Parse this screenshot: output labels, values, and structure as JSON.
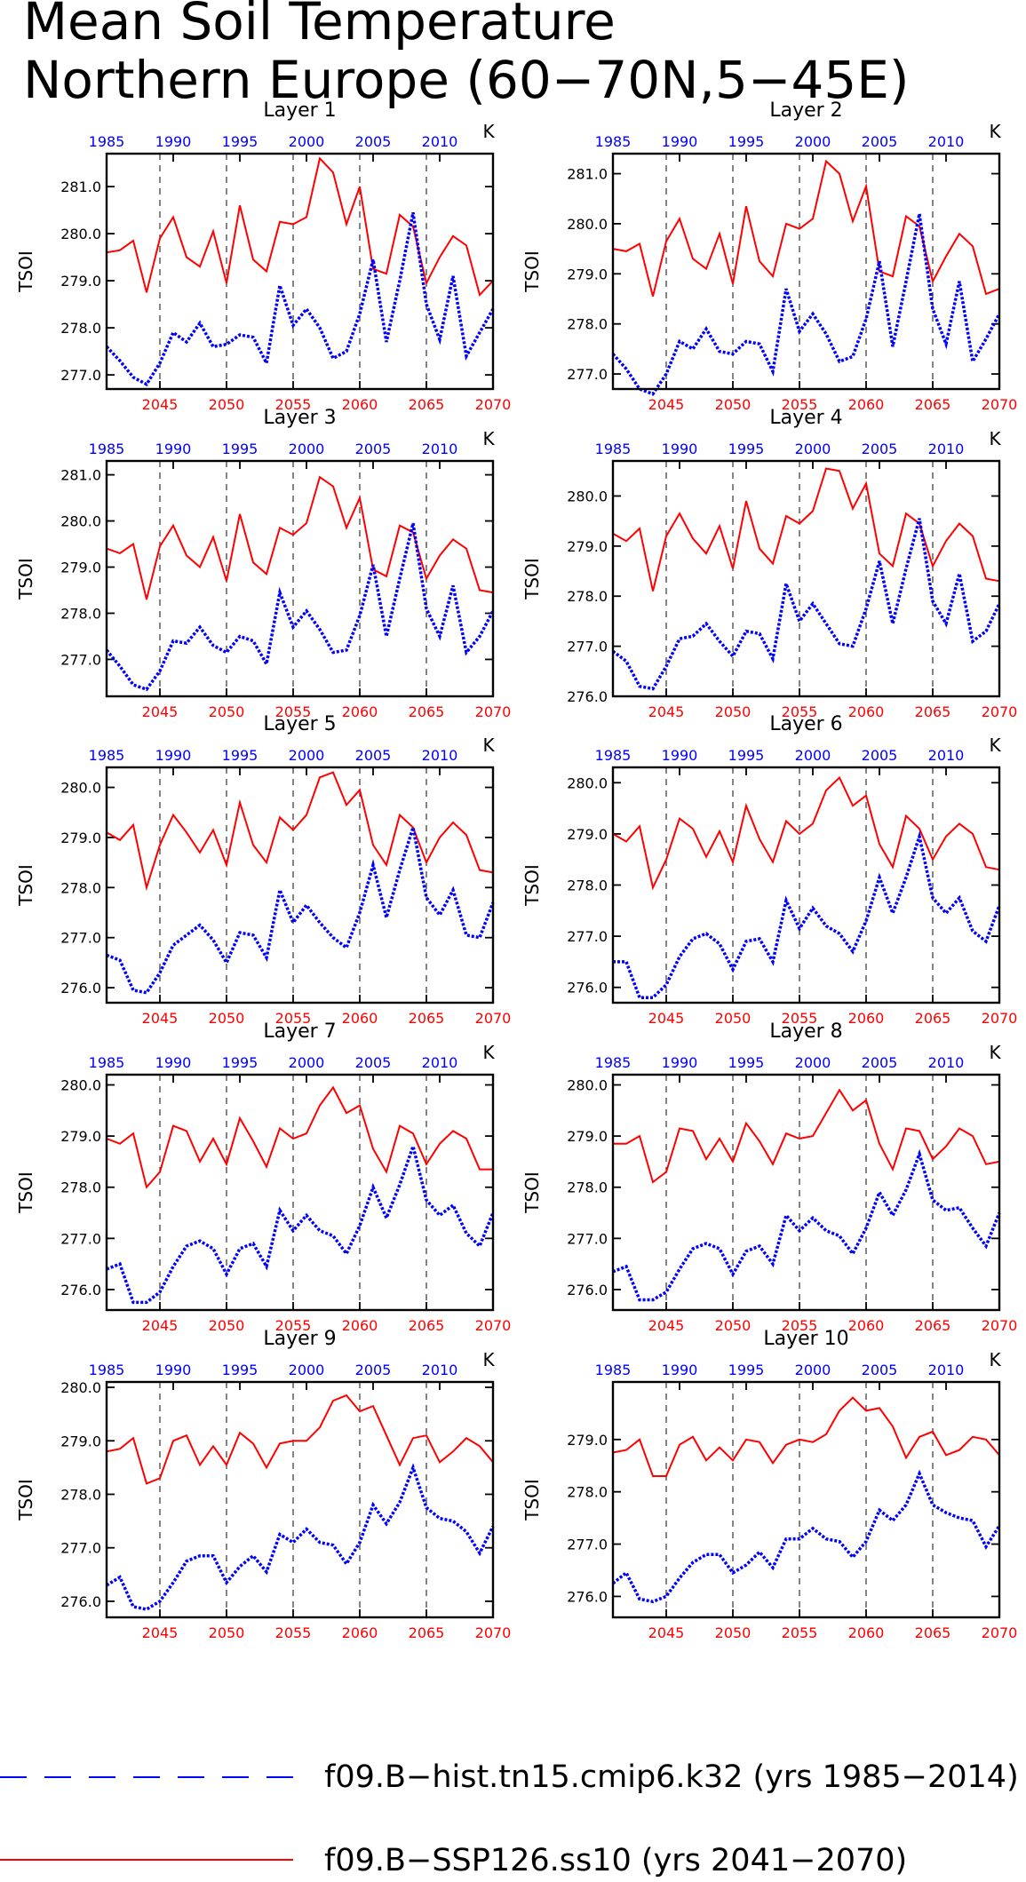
{
  "page": {
    "title_line1": "Mean Soil Temperature",
    "title_line2": "Northern Europe (60−70N,5−45E)"
  },
  "legend": {
    "entries": [
      {
        "label": "f09.B−hist.tn15.cmip6.k32 (yrs 1985−2014)",
        "color": "#0000ff",
        "style": "dashed"
      },
      {
        "label": "f09.B−SSP126.ss10 (yrs 2041−2070)",
        "color": "#ff0000",
        "style": "solid"
      }
    ]
  },
  "colors": {
    "red": "#ff0000",
    "blue": "#0000ff",
    "axis": "#000000"
  },
  "chart_data": [
    {
      "type": "line",
      "title": "Layer 1",
      "ylabel": "TSOI",
      "unit": "K",
      "ylim": [
        276.7,
        281.7
      ],
      "yticks": [
        277.0,
        278.0,
        279.0,
        280.0,
        281.0
      ],
      "x_bottom": [
        2041,
        2070
      ],
      "x_bottom_ticks": [
        2045,
        2050,
        2055,
        2060,
        2065,
        2070
      ],
      "x_top": [
        1985,
        2014
      ],
      "x_top_ticks": [
        1985,
        1990,
        1995,
        2000,
        2005,
        2010
      ],
      "red": [
        279.6,
        279.65,
        279.85,
        278.75,
        279.9,
        280.35,
        279.5,
        279.3,
        280.05,
        278.95,
        280.6,
        279.45,
        279.2,
        280.25,
        280.2,
        280.35,
        281.6,
        281.3,
        280.2,
        281.0,
        279.25,
        279.15,
        280.4,
        280.15,
        278.95,
        279.5,
        279.95,
        279.75,
        278.7,
        279.0
      ],
      "blue": [
        277.6,
        277.3,
        276.95,
        276.8,
        277.25,
        277.9,
        277.7,
        278.1,
        277.6,
        277.65,
        277.85,
        277.8,
        277.25,
        278.9,
        278.05,
        278.4,
        278.0,
        277.35,
        277.5,
        278.3,
        279.45,
        277.7,
        279.0,
        280.45,
        278.5,
        277.75,
        279.1,
        277.4,
        277.9,
        278.4
      ]
    },
    {
      "type": "line",
      "title": "Layer 2",
      "ylabel": "TSOI",
      "unit": "K",
      "ylim": [
        276.7,
        281.4
      ],
      "yticks": [
        277.0,
        278.0,
        279.0,
        280.0,
        281.0
      ],
      "x_bottom": [
        2041,
        2070
      ],
      "x_bottom_ticks": [
        2045,
        2050,
        2055,
        2060,
        2065,
        2070
      ],
      "x_top": [
        1985,
        2014
      ],
      "x_top_ticks": [
        1985,
        1990,
        1995,
        2000,
        2005,
        2010
      ],
      "red": [
        279.5,
        279.45,
        279.6,
        278.55,
        279.65,
        280.1,
        279.3,
        279.1,
        279.8,
        278.8,
        280.35,
        279.25,
        278.95,
        280.0,
        279.9,
        280.1,
        281.25,
        281.0,
        280.05,
        280.75,
        279.05,
        278.95,
        280.15,
        279.95,
        278.85,
        279.35,
        279.8,
        279.55,
        278.6,
        278.7
      ],
      "blue": [
        277.4,
        277.1,
        276.7,
        276.6,
        277.0,
        277.65,
        277.5,
        277.9,
        277.45,
        277.4,
        277.65,
        277.6,
        277.05,
        278.7,
        277.85,
        278.2,
        277.8,
        277.25,
        277.35,
        278.1,
        279.25,
        277.55,
        278.85,
        280.2,
        278.3,
        277.6,
        278.85,
        277.25,
        277.7,
        278.2
      ]
    },
    {
      "type": "line",
      "title": "Layer 3",
      "ylabel": "TSOI",
      "unit": "K",
      "ylim": [
        276.2,
        281.3
      ],
      "yticks": [
        277.0,
        278.0,
        279.0,
        280.0,
        281.0
      ],
      "x_bottom": [
        2041,
        2070
      ],
      "x_bottom_ticks": [
        2045,
        2050,
        2055,
        2060,
        2065,
        2070
      ],
      "x_top": [
        1985,
        2014
      ],
      "x_top_ticks": [
        1985,
        1990,
        1995,
        2000,
        2005,
        2010
      ],
      "red": [
        279.4,
        279.3,
        279.5,
        278.3,
        279.45,
        279.9,
        279.25,
        279.0,
        279.65,
        278.7,
        280.15,
        279.1,
        278.85,
        279.85,
        279.7,
        279.95,
        280.95,
        280.75,
        279.85,
        280.5,
        278.95,
        278.8,
        279.9,
        279.75,
        278.75,
        279.25,
        279.6,
        279.4,
        278.5,
        278.45
      ],
      "blue": [
        277.2,
        276.85,
        276.45,
        276.35,
        276.75,
        277.4,
        277.35,
        277.7,
        277.3,
        277.15,
        277.5,
        277.4,
        276.9,
        278.45,
        277.7,
        278.05,
        277.65,
        277.15,
        277.2,
        277.95,
        279.05,
        277.5,
        278.75,
        279.95,
        278.1,
        277.5,
        278.6,
        277.15,
        277.5,
        278.05
      ]
    },
    {
      "type": "line",
      "title": "Layer 4",
      "ylabel": "TSOI",
      "unit": "K",
      "ylim": [
        276.0,
        280.7
      ],
      "yticks": [
        276.0,
        277.0,
        278.0,
        279.0,
        280.0
      ],
      "x_bottom": [
        2041,
        2070
      ],
      "x_bottom_ticks": [
        2045,
        2050,
        2055,
        2060,
        2065,
        2070
      ],
      "x_top": [
        1985,
        2014
      ],
      "x_top_ticks": [
        1985,
        1990,
        1995,
        2000,
        2005,
        2010
      ],
      "red": [
        279.25,
        279.1,
        279.35,
        278.1,
        279.2,
        279.65,
        279.15,
        278.85,
        279.4,
        278.55,
        279.9,
        278.95,
        278.65,
        279.6,
        279.45,
        279.7,
        280.55,
        280.5,
        279.75,
        280.25,
        278.85,
        278.6,
        279.65,
        279.45,
        278.6,
        279.1,
        279.45,
        279.2,
        278.35,
        278.3
      ],
      "blue": [
        276.9,
        276.7,
        276.2,
        276.15,
        276.6,
        277.15,
        277.2,
        277.45,
        277.1,
        276.8,
        277.3,
        277.25,
        276.75,
        278.25,
        277.5,
        277.85,
        277.45,
        277.05,
        277.0,
        277.75,
        278.7,
        277.45,
        278.55,
        279.55,
        277.9,
        277.45,
        278.45,
        277.1,
        277.3,
        277.85
      ]
    },
    {
      "type": "line",
      "title": "Layer 5",
      "ylabel": "TSOI",
      "unit": "K",
      "ylim": [
        275.7,
        280.4
      ],
      "yticks": [
        276.0,
        277.0,
        278.0,
        279.0,
        280.0
      ],
      "x_bottom": [
        2041,
        2070
      ],
      "x_bottom_ticks": [
        2045,
        2050,
        2055,
        2060,
        2065,
        2070
      ],
      "x_top": [
        1985,
        2014
      ],
      "x_top_ticks": [
        1985,
        1990,
        1995,
        2000,
        2005,
        2010
      ],
      "red": [
        279.1,
        278.95,
        279.25,
        278.0,
        278.85,
        279.45,
        279.1,
        278.7,
        279.15,
        278.45,
        279.7,
        278.85,
        278.5,
        279.4,
        279.15,
        279.45,
        280.2,
        280.3,
        279.65,
        279.95,
        278.85,
        278.45,
        279.45,
        279.2,
        278.5,
        279.0,
        279.3,
        279.05,
        278.35,
        278.3
      ],
      "blue": [
        276.65,
        276.55,
        275.95,
        275.9,
        276.3,
        276.85,
        277.05,
        277.25,
        276.95,
        276.5,
        277.1,
        277.05,
        276.6,
        277.95,
        277.3,
        277.65,
        277.3,
        277.0,
        276.8,
        277.5,
        278.45,
        277.4,
        278.35,
        279.2,
        277.8,
        277.45,
        277.95,
        277.05,
        277.0,
        277.7
      ]
    },
    {
      "type": "line",
      "title": "Layer 6",
      "ylabel": "TSOI",
      "unit": "K",
      "ylim": [
        275.7,
        280.3
      ],
      "yticks": [
        276.0,
        277.0,
        278.0,
        279.0,
        280.0
      ],
      "x_bottom": [
        2041,
        2070
      ],
      "x_bottom_ticks": [
        2045,
        2050,
        2055,
        2060,
        2065,
        2070
      ],
      "x_top": [
        1985,
        2014
      ],
      "x_top_ticks": [
        1985,
        1990,
        1995,
        2000,
        2005,
        2010
      ],
      "red": [
        279.0,
        278.85,
        279.15,
        277.95,
        278.5,
        279.3,
        279.1,
        278.55,
        279.05,
        278.45,
        279.55,
        278.9,
        278.45,
        279.25,
        279.0,
        279.2,
        279.85,
        280.1,
        279.55,
        279.75,
        278.8,
        278.35,
        279.35,
        279.1,
        278.5,
        278.95,
        279.2,
        279.0,
        278.35,
        278.3
      ],
      "blue": [
        276.5,
        276.5,
        275.8,
        275.8,
        276.05,
        276.6,
        276.95,
        277.05,
        276.85,
        276.35,
        276.9,
        276.95,
        276.5,
        277.7,
        277.15,
        277.55,
        277.2,
        277.05,
        276.7,
        277.3,
        278.15,
        277.45,
        278.15,
        278.95,
        277.75,
        277.45,
        277.75,
        277.1,
        276.9,
        277.6
      ]
    },
    {
      "type": "line",
      "title": "Layer 7",
      "ylabel": "TSOI",
      "unit": "K",
      "ylim": [
        275.6,
        280.2
      ],
      "yticks": [
        276.0,
        277.0,
        278.0,
        279.0,
        280.0
      ],
      "x_bottom": [
        2041,
        2070
      ],
      "x_bottom_ticks": [
        2045,
        2050,
        2055,
        2060,
        2065,
        2070
      ],
      "x_top": [
        1985,
        2014
      ],
      "x_top_ticks": [
        1985,
        1990,
        1995,
        2000,
        2005,
        2010
      ],
      "red": [
        278.95,
        278.85,
        279.05,
        278.0,
        278.3,
        279.2,
        279.1,
        278.5,
        278.95,
        278.45,
        279.35,
        278.9,
        278.4,
        279.15,
        278.95,
        279.05,
        279.6,
        279.95,
        279.45,
        279.6,
        278.75,
        278.3,
        279.2,
        279.05,
        278.45,
        278.85,
        279.1,
        278.95,
        278.35,
        278.35
      ],
      "blue": [
        276.4,
        276.5,
        275.75,
        275.75,
        275.95,
        276.45,
        276.85,
        276.95,
        276.8,
        276.3,
        276.8,
        276.9,
        276.45,
        277.55,
        277.15,
        277.45,
        277.15,
        277.05,
        276.7,
        277.25,
        278.0,
        277.4,
        278.05,
        278.8,
        277.75,
        277.45,
        277.65,
        277.1,
        276.85,
        277.5
      ]
    },
    {
      "type": "line",
      "title": "Layer 8",
      "ylabel": "TSOI",
      "unit": "K",
      "ylim": [
        275.6,
        280.2
      ],
      "yticks": [
        276.0,
        277.0,
        278.0,
        279.0,
        280.0
      ],
      "x_bottom": [
        2041,
        2070
      ],
      "x_bottom_ticks": [
        2045,
        2050,
        2055,
        2060,
        2065,
        2070
      ],
      "x_top": [
        1985,
        2014
      ],
      "x_top_ticks": [
        1985,
        1990,
        1995,
        2000,
        2005,
        2010
      ],
      "red": [
        278.85,
        278.85,
        279.0,
        278.1,
        278.3,
        279.15,
        279.1,
        278.55,
        278.95,
        278.5,
        279.25,
        278.9,
        278.45,
        279.05,
        278.95,
        279.0,
        279.45,
        279.9,
        279.5,
        279.7,
        278.85,
        278.35,
        279.15,
        279.1,
        278.55,
        278.8,
        279.15,
        279.0,
        278.45,
        278.5
      ],
      "blue": [
        276.35,
        276.45,
        275.8,
        275.8,
        275.95,
        276.4,
        276.8,
        276.9,
        276.8,
        276.3,
        276.75,
        276.85,
        276.5,
        277.45,
        277.15,
        277.4,
        277.15,
        277.05,
        276.7,
        277.2,
        277.9,
        277.45,
        277.95,
        278.65,
        277.75,
        277.55,
        277.6,
        277.2,
        276.85,
        277.5
      ]
    },
    {
      "type": "line",
      "title": "Layer 9",
      "ylabel": "TSOI",
      "unit": "K",
      "ylim": [
        275.7,
        280.1
      ],
      "yticks": [
        276.0,
        277.0,
        278.0,
        279.0,
        280.0
      ],
      "x_bottom": [
        2041,
        2070
      ],
      "x_bottom_ticks": [
        2045,
        2050,
        2055,
        2060,
        2065,
        2070
      ],
      "x_top": [
        1985,
        2014
      ],
      "x_top_ticks": [
        1985,
        1990,
        1995,
        2000,
        2005,
        2010
      ],
      "red": [
        278.8,
        278.85,
        279.05,
        278.2,
        278.3,
        279.0,
        279.1,
        278.55,
        278.9,
        278.55,
        279.15,
        278.95,
        278.5,
        278.95,
        279.0,
        279.0,
        279.25,
        279.75,
        279.85,
        279.55,
        279.65,
        279.1,
        278.55,
        279.05,
        279.1,
        278.6,
        278.8,
        279.05,
        278.9,
        278.6
      ],
      "blue": [
        276.3,
        276.45,
        275.9,
        275.85,
        276.0,
        276.35,
        276.75,
        276.85,
        276.85,
        276.35,
        276.65,
        276.85,
        276.55,
        277.25,
        277.1,
        277.35,
        277.1,
        277.05,
        276.7,
        277.1,
        277.8,
        277.45,
        277.85,
        278.5,
        277.75,
        277.55,
        277.5,
        277.3,
        276.9,
        277.4
      ]
    },
    {
      "type": "line",
      "title": "Layer 10",
      "ylabel": "TSOI",
      "unit": "K",
      "ylim": [
        275.6,
        280.1
      ],
      "yticks": [
        276.0,
        277.0,
        278.0,
        279.0
      ],
      "x_bottom": [
        2041,
        2070
      ],
      "x_bottom_ticks": [
        2045,
        2050,
        2055,
        2060,
        2065,
        2070
      ],
      "x_top": [
        1985,
        2014
      ],
      "x_top_ticks": [
        1985,
        1990,
        1995,
        2000,
        2005,
        2010
      ],
      "red": [
        278.75,
        278.8,
        279.0,
        278.3,
        278.3,
        278.9,
        279.05,
        278.6,
        278.85,
        278.6,
        279.0,
        278.95,
        278.55,
        278.9,
        279.0,
        278.95,
        279.1,
        279.55,
        279.8,
        279.55,
        279.6,
        279.25,
        278.65,
        279.05,
        279.15,
        278.7,
        278.8,
        279.05,
        279.0,
        278.7
      ],
      "blue": [
        276.25,
        276.45,
        275.95,
        275.9,
        276.0,
        276.35,
        276.65,
        276.8,
        276.8,
        276.45,
        276.6,
        276.85,
        276.55,
        277.1,
        277.1,
        277.3,
        277.1,
        277.05,
        276.75,
        277.05,
        277.65,
        277.45,
        277.75,
        278.35,
        277.75,
        277.6,
        277.5,
        277.45,
        276.95,
        277.35
      ]
    }
  ]
}
